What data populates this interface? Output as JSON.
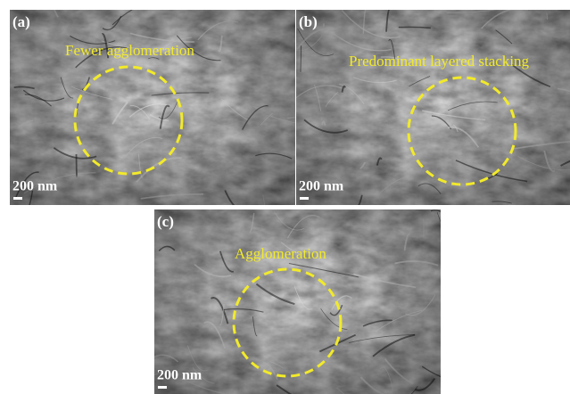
{
  "panels": [
    {
      "label": "(a)",
      "annotation": "Fewer agglomeration",
      "scale_bar": "200 nm"
    },
    {
      "label": "(b)",
      "annotation": "Predominant layered stacking",
      "scale_bar": "200 nm"
    },
    {
      "label": "(c)",
      "annotation": "Agglomeration",
      "scale_bar": "200 nm"
    }
  ]
}
